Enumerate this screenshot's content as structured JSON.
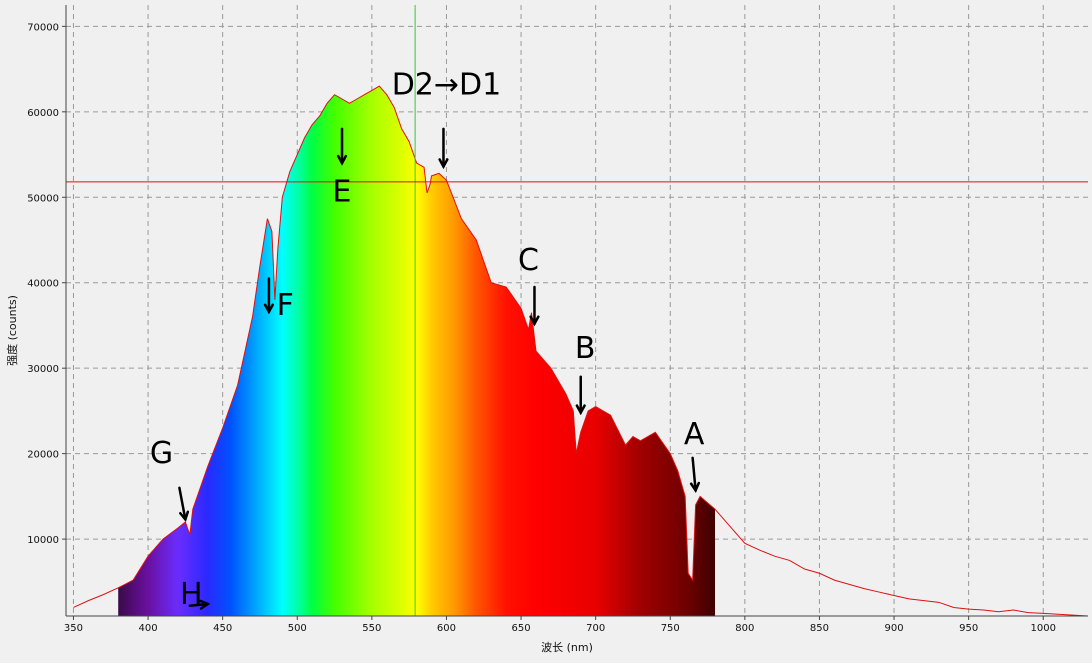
{
  "chart_data": {
    "type": "area",
    "xlabel": "波长 (nm)",
    "ylabel": "强度 (counts)",
    "xlim": [
      345,
      1030
    ],
    "ylim": [
      1000,
      72500
    ],
    "xticks": [
      350,
      400,
      450,
      500,
      550,
      600,
      650,
      700,
      750,
      800,
      850,
      900,
      950,
      1000
    ],
    "yticks": [
      10000,
      20000,
      30000,
      40000,
      50000,
      60000,
      70000
    ],
    "grid": true,
    "cursor_x": 579,
    "cursor_y": 51800,
    "colors": {
      "curve": "#dd1111",
      "cursor_v": "#33cc33",
      "cursor_h": "#dd1111",
      "grid": "#999999"
    },
    "fill_range_nm": [
      380,
      780
    ],
    "series": [
      {
        "x": [
          350,
          360,
          370,
          380,
          390,
          400,
          410,
          420,
          425,
          428,
          430,
          440,
          450,
          460,
          470,
          475,
          480,
          483,
          485,
          487,
          490,
          495,
          500,
          505,
          510,
          515,
          520,
          525,
          530,
          535,
          540,
          545,
          550,
          555,
          560,
          565,
          570,
          575,
          580,
          585,
          587,
          589,
          590,
          595,
          600,
          610,
          620,
          630,
          640,
          650,
          655,
          657,
          660,
          670,
          680,
          685,
          687,
          690,
          695,
          700,
          710,
          720,
          725,
          730,
          740,
          750,
          755,
          760,
          762,
          765,
          767,
          770,
          780,
          790,
          800,
          810,
          820,
          830,
          840,
          850,
          860,
          870,
          880,
          890,
          900,
          910,
          920,
          930,
          940,
          950,
          960,
          970,
          980,
          990,
          1000,
          1010,
          1020,
          1030
        ],
        "values": [
          2000,
          2800,
          3500,
          4300,
          5200,
          8000,
          10000,
          11300,
          12000,
          10500,
          13500,
          18500,
          23000,
          28000,
          36000,
          42000,
          47500,
          46000,
          38000,
          44000,
          50000,
          53000,
          55000,
          57000,
          58500,
          59500,
          61000,
          62000,
          61500,
          61000,
          61500,
          62000,
          62500,
          63000,
          62000,
          60500,
          58000,
          56500,
          54000,
          53500,
          50500,
          51500,
          52500,
          52800,
          52000,
          47500,
          45000,
          40000,
          39500,
          37000,
          34500,
          36500,
          32000,
          30000,
          27000,
          25000,
          20000,
          22500,
          25000,
          25500,
          24500,
          21000,
          22000,
          21500,
          22500,
          20000,
          18000,
          15000,
          6000,
          5200,
          14000,
          15000,
          13500,
          11500,
          9500,
          8700,
          8000,
          7500,
          6500,
          6000,
          5200,
          4700,
          4200,
          3800,
          3400,
          3000,
          2800,
          2600,
          2000,
          1800,
          1700,
          1500,
          1700,
          1400,
          1300,
          1200,
          1100,
          1000
        ]
      }
    ],
    "annotations": [
      {
        "text": "H",
        "x": 429,
        "y": 2400
      },
      {
        "text": "G",
        "x": 409,
        "y": 18900
      },
      {
        "text": "F",
        "x": 492,
        "y": 36200
      },
      {
        "text": "E",
        "x": 530,
        "y": 49500
      },
      {
        "text": "D2→D1",
        "x": 600,
        "y": 62000
      },
      {
        "text": "C",
        "x": 655,
        "y": 41500
      },
      {
        "text": "B",
        "x": 693,
        "y": 31200
      },
      {
        "text": "A",
        "x": 766,
        "y": 21100
      }
    ],
    "annotation_arrows": [
      {
        "from": [
          428,
          2200
        ],
        "to": [
          440,
          2400
        ]
      },
      {
        "from": [
          421,
          16000
        ],
        "to": [
          425,
          12300
        ]
      },
      {
        "from": [
          481,
          40500
        ],
        "to": [
          481,
          36600
        ]
      },
      {
        "from": [
          530,
          58000
        ],
        "to": [
          530,
          54000
        ]
      },
      {
        "from": [
          598,
          58000
        ],
        "to": [
          598,
          53600
        ]
      },
      {
        "from": [
          659,
          39500
        ],
        "to": [
          659,
          35200
        ]
      },
      {
        "from": [
          690,
          29000
        ],
        "to": [
          690,
          24800
        ]
      },
      {
        "from": [
          765,
          19500
        ],
        "to": [
          767,
          15700
        ]
      }
    ]
  }
}
